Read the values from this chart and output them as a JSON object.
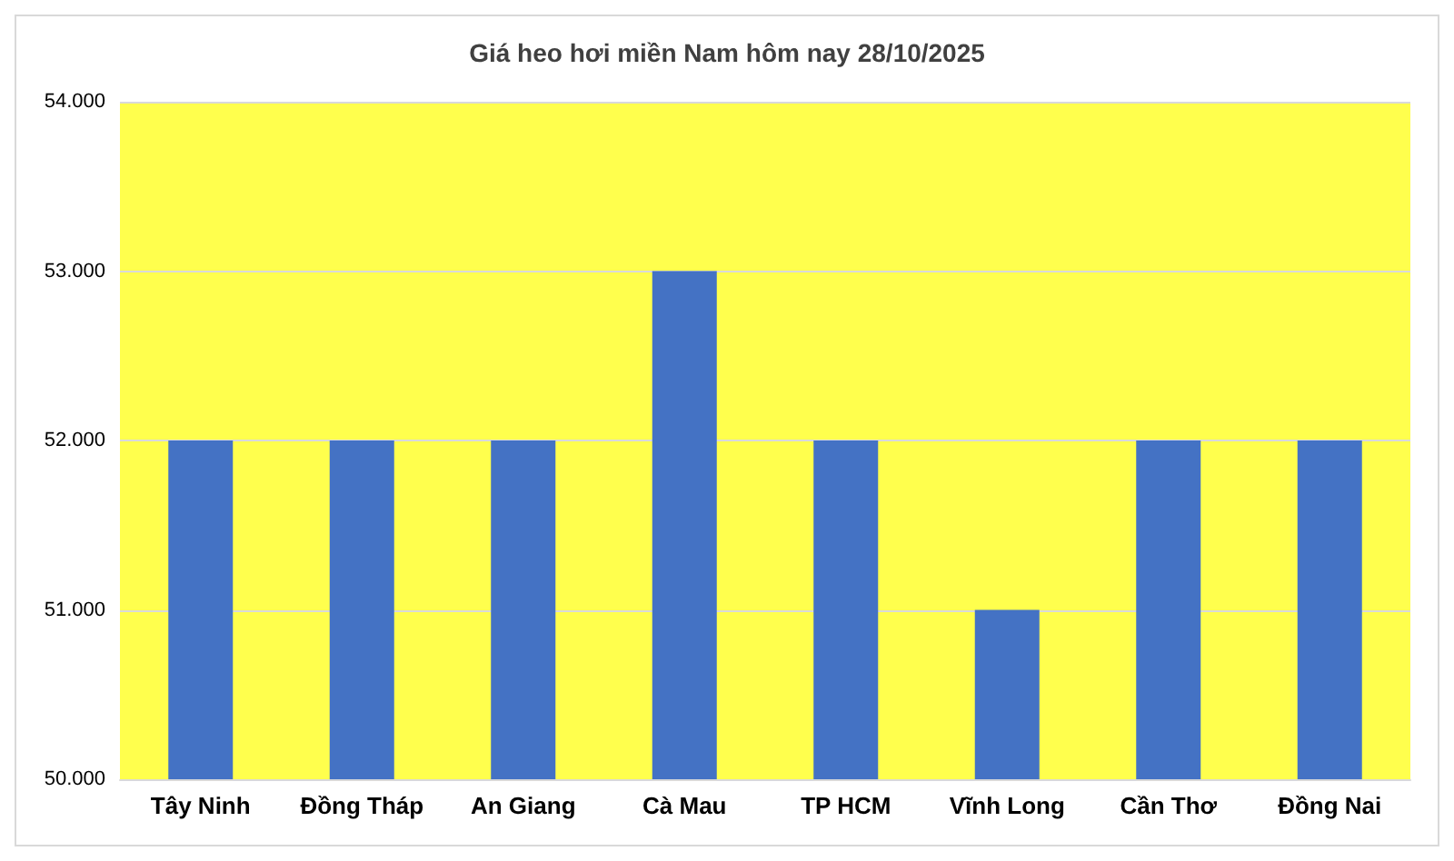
{
  "chart_data": {
    "type": "bar",
    "title": "Giá heo hơi miền Nam hôm nay 28/10/2025",
    "categories": [
      "Tây Ninh",
      "Đồng Tháp",
      "An Giang",
      "Cà Mau",
      "TP HCM",
      "Vĩnh Long",
      "Cần Thơ",
      "Đồng Nai"
    ],
    "values": [
      52000,
      52000,
      52000,
      53000,
      52000,
      51000,
      52000,
      52000
    ],
    "color": "#4472c4",
    "ylim": [
      50000,
      54000
    ],
    "yticks": [
      {
        "value": 50000,
        "label": "50.000"
      },
      {
        "value": 51000,
        "label": "51.000"
      },
      {
        "value": 52000,
        "label": "52.000"
      },
      {
        "value": 53000,
        "label": "53.000"
      },
      {
        "value": 54000,
        "label": "54.000"
      }
    ],
    "grid": "y"
  }
}
